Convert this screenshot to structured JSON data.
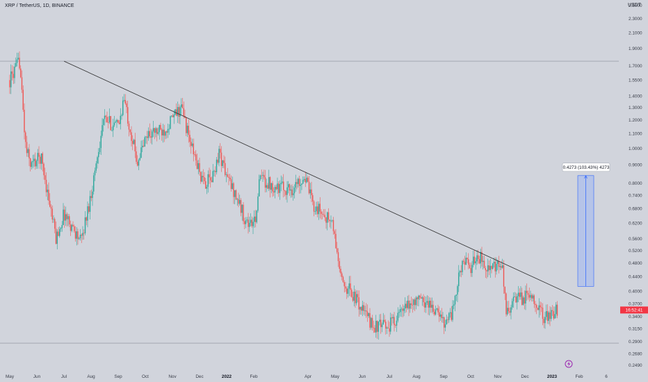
{
  "header": {
    "symbol_title": "XRP / TetherUS, 1D, BINANCE",
    "currency_unit": "USDT"
  },
  "colors": {
    "background": "#d1d4dc",
    "up_candle": "#26a69a",
    "down_candle": "#ef5350",
    "trendline": "#2b2b2b",
    "measure_fill": "#b2c1ea",
    "measure_stroke": "#2962ff",
    "price_tag": "#f23645"
  },
  "chart_data": {
    "type": "candlestick",
    "scale": "log",
    "title": "XRP / TetherUS, 1D, BINANCE",
    "y_unit": "USDT",
    "y_ticks": [
      0.249,
      0.268,
      0.29,
      0.315,
      0.34,
      0.37,
      0.4,
      0.44,
      0.48,
      0.52,
      0.56,
      0.62,
      0.68,
      0.74,
      0.8,
      0.9,
      1.0,
      1.1,
      1.2,
      1.3,
      1.4,
      1.55,
      1.7,
      1.9,
      2.1,
      2.3,
      2.5
    ],
    "y_tick_labels": [
      "0.2490",
      "0.2680",
      "0.2900",
      "0.3150",
      "0.3400",
      "0.3700",
      "0.4000",
      "0.4400",
      "0.4800",
      "0.5200",
      "0.5600",
      "0.6200",
      "0.6800",
      "0.7400",
      "0.8000",
      "0.9000",
      "1.0000",
      "1.1000",
      "1.2000",
      "1.3000",
      "1.4000",
      "1.5500",
      "1.7000",
      "1.9000",
      "2.1000",
      "2.3000",
      "2.5000"
    ],
    "ylim": [
      0.24,
      2.7
    ],
    "x_ticks": [
      "May",
      "Jun",
      "Jul",
      "Aug",
      "Sep",
      "Oct",
      "Nov",
      "Dec",
      "2022",
      "Feb",
      "Apr",
      "May",
      "Jun",
      "Jul",
      "Aug",
      "Sep",
      "Oct",
      "Nov",
      "Dec",
      "2023",
      "Feb",
      "6"
    ],
    "x_tick_bold": [
      "2022",
      "2023"
    ],
    "x_tick_months_from_may_2021": [
      0,
      1,
      2,
      3,
      4,
      5,
      6,
      7,
      8,
      9,
      11,
      12,
      13,
      14,
      15,
      16,
      17,
      18,
      19,
      20,
      21,
      22
    ],
    "close_path": [
      [
        "2021-05-01",
        1.55
      ],
      [
        "2021-05-12",
        1.75
      ],
      [
        "2021-05-19",
        1.0
      ],
      [
        "2021-05-25",
        0.9
      ],
      [
        "2021-06-05",
        0.95
      ],
      [
        "2021-06-22",
        0.56
      ],
      [
        "2021-07-01",
        0.66
      ],
      [
        "2021-07-20",
        0.55
      ],
      [
        "2021-07-31",
        0.74
      ],
      [
        "2021-08-14",
        1.2
      ],
      [
        "2021-08-31",
        1.15
      ],
      [
        "2021-09-06",
        1.38
      ],
      [
        "2021-09-21",
        0.92
      ],
      [
        "2021-10-03",
        1.1
      ],
      [
        "2021-10-20",
        1.12
      ],
      [
        "2021-11-04",
        1.25
      ],
      [
        "2021-11-10",
        1.3
      ],
      [
        "2021-11-19",
        1.05
      ],
      [
        "2021-12-04",
        0.8
      ],
      [
        "2021-12-14",
        0.82
      ],
      [
        "2021-12-22",
        0.98
      ],
      [
        "2021-12-31",
        0.83
      ],
      [
        "2022-01-10",
        0.74
      ],
      [
        "2022-01-22",
        0.62
      ],
      [
        "2022-01-31",
        0.62
      ],
      [
        "2022-02-06",
        0.83
      ],
      [
        "2022-02-20",
        0.79
      ],
      [
        "2022-02-28",
        0.78
      ],
      [
        "2022-03-14",
        0.77
      ],
      [
        "2022-03-28",
        0.84
      ],
      [
        "2022-04-06",
        0.7
      ],
      [
        "2022-04-28",
        0.62
      ],
      [
        "2022-05-09",
        0.42
      ],
      [
        "2022-05-16",
        0.41
      ],
      [
        "2022-06-13",
        0.32
      ],
      [
        "2022-06-30",
        0.32
      ],
      [
        "2022-07-15",
        0.35
      ],
      [
        "2022-07-31",
        0.38
      ],
      [
        "2022-08-15",
        0.37
      ],
      [
        "2022-08-31",
        0.33
      ],
      [
        "2022-09-10",
        0.35
      ],
      [
        "2022-09-21",
        0.49
      ],
      [
        "2022-10-01",
        0.46
      ],
      [
        "2022-10-07",
        0.51
      ],
      [
        "2022-10-22",
        0.46
      ],
      [
        "2022-11-05",
        0.47
      ],
      [
        "2022-11-09",
        0.35
      ],
      [
        "2022-11-20",
        0.38
      ],
      [
        "2022-12-10",
        0.39
      ],
      [
        "2022-12-20",
        0.34
      ],
      [
        "2022-12-31",
        0.34
      ],
      [
        "2023-01-07",
        0.36
      ]
    ],
    "trendline": {
      "start": [
        "2021-07-01",
        1.75
      ],
      "end": [
        "2023-02-02",
        0.38
      ]
    },
    "horizontal_lines": [
      1.75,
      0.287
    ],
    "measure": {
      "from": 0.4131,
      "to": 0.8404,
      "label": "0.4273 (103.43%) 4273"
    },
    "current_price_tag": "16:52:41"
  }
}
